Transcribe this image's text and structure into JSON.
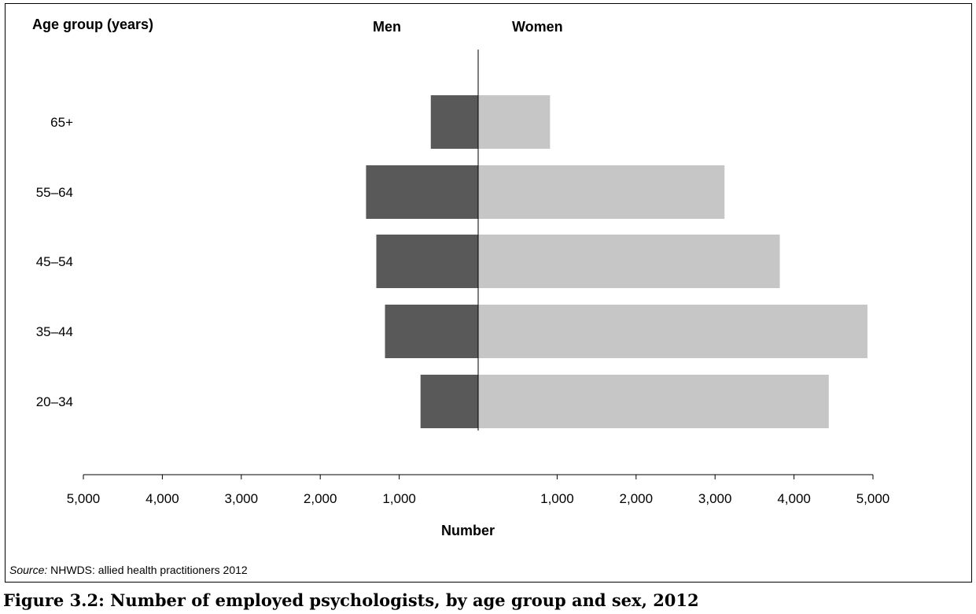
{
  "chart_data": {
    "type": "bar",
    "orientation": "horizontal-diverging",
    "y_axis_title": "Age group (years)",
    "xlabel": "Number",
    "categories": [
      "65+",
      "55–64",
      "45–54",
      "35–44",
      "20–34"
    ],
    "series": [
      {
        "name": "Men",
        "values": [
          600,
          1420,
          1290,
          1180,
          730
        ],
        "color": "#595959",
        "side": "left"
      },
      {
        "name": "Women",
        "values": [
          910,
          3120,
          3820,
          4930,
          4440
        ],
        "color": "#c6c6c6",
        "side": "right"
      }
    ],
    "xlim": [
      -5000,
      5000
    ],
    "x_ticks": [
      -5000,
      -4000,
      -3000,
      -2000,
      -1000,
      1000,
      2000,
      3000,
      4000,
      5000
    ],
    "x_tick_labels": [
      "5,000",
      "4,000",
      "3,000",
      "2,000",
      "1,000",
      "1,000",
      "2,000",
      "3,000",
      "4,000",
      "5,000"
    ],
    "grid": false,
    "legend": "none"
  },
  "source": {
    "label": "Source:",
    "text": " NHWDS: allied health practitioners 2012"
  },
  "caption": "Figure 3.2: Number of employed psychologists, by age group and sex, 2012"
}
